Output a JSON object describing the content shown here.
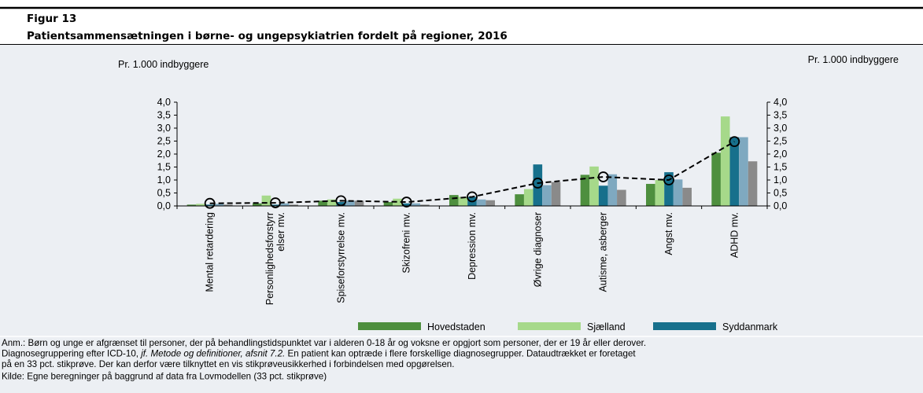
{
  "figure_label": "Figur 13",
  "chart_data": {
    "type": "bar",
    "title": "Patientsammensætningen i børne- og ungepsykiatrien fordelt på regioner, 2016",
    "y_label": "Pr. 1.000 indbyggere",
    "y2_label": "Pr. 1.000 indbyggere",
    "categories": [
      "Mental retardering",
      "Personlighedsforstyrr\nelser mv.",
      "Spiseforstyrrelse mv.",
      "Skizofreni mv.",
      "Depression mv.",
      "Øvrige diagnoser",
      "Autisme, asberger",
      "Angst mv.",
      "ADHD mv."
    ],
    "series": [
      {
        "name": "Hovedstaden",
        "color": "#4e8f3e",
        "values": [
          0.05,
          0.1,
          0.2,
          0.15,
          0.42,
          0.45,
          1.2,
          0.85,
          2.05
        ]
      },
      {
        "name": "Sjælland",
        "color": "#a6d98a",
        "values": [
          0.08,
          0.4,
          0.25,
          0.28,
          0.35,
          0.65,
          1.52,
          1.0,
          3.45
        ]
      },
      {
        "name": "Syddanmark",
        "color": "#17708c",
        "values": [
          0.05,
          0.05,
          0.15,
          0.1,
          0.35,
          1.6,
          0.78,
          1.3,
          2.65
        ]
      },
      {
        "color": "#7fa9c0",
        "values": [
          0.08,
          0.1,
          0.2,
          0.1,
          0.25,
          0.8,
          1.22,
          1.02,
          2.65
        ]
      },
      {
        "color": "#8a8a8a",
        "values": [
          0.05,
          0.05,
          0.2,
          0.05,
          0.22,
          0.92,
          0.62,
          0.7,
          1.72
        ]
      },
      {
        "type": "line",
        "color": "#000000",
        "values": [
          0.1,
          0.12,
          0.2,
          0.15,
          0.35,
          0.88,
          1.12,
          1.0,
          2.48
        ]
      }
    ],
    "ylim": [
      0,
      4
    ],
    "yticks": [
      {
        "value": 0,
        "label": "0,0"
      },
      {
        "value": 0.5,
        "label": "0,5"
      },
      {
        "value": 1,
        "label": "1,0"
      },
      {
        "value": 1.5,
        "label": "1,5"
      },
      {
        "value": 2,
        "label": "2,0"
      },
      {
        "value": 2.5,
        "label": "2,5"
      },
      {
        "value": 3,
        "label": "3,0"
      },
      {
        "value": 3.5,
        "label": "3,5"
      },
      {
        "value": 4,
        "label": "4,0"
      }
    ],
    "y2lim": [
      0,
      4
    ],
    "y2ticks": [
      {
        "value": 0,
        "label": "0,0"
      },
      {
        "value": 0.5,
        "label": "0,5"
      },
      {
        "value": 1,
        "label": "1,0"
      },
      {
        "value": 1.5,
        "label": "1,5"
      },
      {
        "value": 2,
        "label": "2,0"
      },
      {
        "value": 2.5,
        "label": "2,5"
      },
      {
        "value": 3,
        "label": "3,0"
      },
      {
        "value": 3.5,
        "label": "3,5"
      },
      {
        "value": 4,
        "label": "4,0"
      }
    ]
  },
  "notes": [
    [
      "Anm.: Børn og unge er afgrænset til personer, der på behandlingstidspunktet var i alderen 0-18 år og voksne er opgjort som personer, der er 19 år eller derover."
    ],
    [
      "Diagnosegruppering efter ICD-10, ",
      "jf. Metode og definitioner, afsnit 7.2.",
      " En patient kan optræde i flere forskellige diagnosegrupper. Dataudtrækket er foretaget"
    ],
    [
      "på en 33 pct. stikprøve. Der kan derfor være tilknyttet en vis stikprøveusikkerhed i forbindelsen med opgørelsen."
    ],
    [
      "Kilde: Egne beregninger på baggrund af data fra Lovmodellen (33 pct. stikprøve)"
    ]
  ]
}
